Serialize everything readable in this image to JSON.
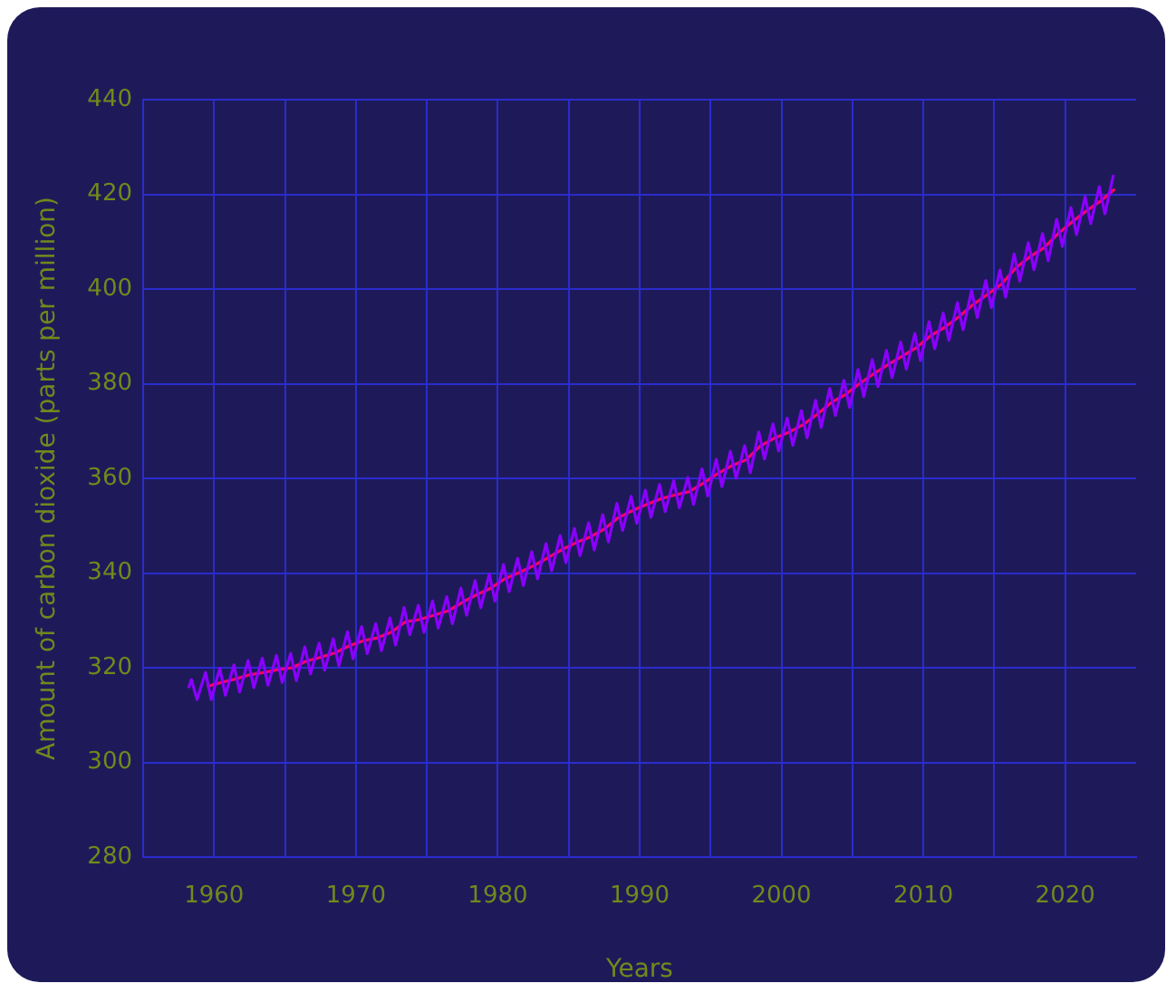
{
  "chart_data": {
    "type": "line",
    "xlabel": "Years",
    "ylabel": "Amount of carbon dioxide (parts per million)",
    "xlim": [
      1955,
      2025
    ],
    "xticks": [
      1960,
      {
        "value": 1965,
        "label": null
      },
      1970,
      {
        "value": 1975,
        "label": null
      },
      1980,
      {
        "value": 1985,
        "label": null
      },
      1990,
      {
        "value": 1995,
        "label": null
      },
      2000,
      {
        "value": 2005,
        "label": null
      },
      2010,
      {
        "value": 2015,
        "label": null
      },
      2020
    ],
    "ylim": [
      280,
      440
    ],
    "yticks": [
      280,
      300,
      320,
      340,
      360,
      380,
      400,
      420,
      440
    ],
    "grid": true,
    "legend": false,
    "marker": "none",
    "line_style": "solid",
    "series": [
      {
        "color": "#8a00ff",
        "x": [
          1958.2,
          1958.4,
          1958.8,
          1959.4,
          1959.8,
          1960.4,
          1960.8,
          1961.4,
          1961.8,
          1962.4,
          1962.8,
          1963.4,
          1963.8,
          1964.4,
          1964.8,
          1965.4,
          1965.8,
          1966.4,
          1966.8,
          1967.4,
          1967.8,
          1968.4,
          1968.8,
          1969.4,
          1969.8,
          1970.4,
          1970.8,
          1971.4,
          1971.8,
          1972.4,
          1972.8,
          1973.4,
          1973.8,
          1974.4,
          1974.8,
          1975.4,
          1975.8,
          1976.4,
          1976.8,
          1977.4,
          1977.8,
          1978.4,
          1978.8,
          1979.4,
          1979.8,
          1980.4,
          1980.8,
          1981.4,
          1981.8,
          1982.4,
          1982.8,
          1983.4,
          1983.8,
          1984.4,
          1984.8,
          1985.4,
          1985.8,
          1986.4,
          1986.8,
          1987.4,
          1987.8,
          1988.4,
          1988.8,
          1989.4,
          1989.8,
          1990.4,
          1990.8,
          1991.4,
          1991.8,
          1992.4,
          1992.8,
          1993.4,
          1993.8,
          1994.4,
          1994.8,
          1995.4,
          1995.8,
          1996.4,
          1996.8,
          1997.4,
          1997.8,
          1998.4,
          1998.8,
          1999.4,
          1999.8,
          2000.4,
          2000.8,
          2001.4,
          2001.8,
          2002.4,
          2002.8,
          2003.4,
          2003.8,
          2004.4,
          2004.8,
          2005.4,
          2005.8,
          2006.4,
          2006.8,
          2007.4,
          2007.8,
          2008.4,
          2008.8,
          2009.4,
          2009.8,
          2010.4,
          2010.8,
          2011.4,
          2011.8,
          2012.4,
          2012.8,
          2013.4,
          2013.8,
          2014.4,
          2014.8,
          2015.4,
          2015.8,
          2016.4,
          2016.8,
          2017.4,
          2017.8,
          2018.4,
          2018.8,
          2019.4,
          2019.8,
          2020.4,
          2020.8,
          2021.4,
          2021.8,
          2022.4,
          2022.8,
          2023.4
        ],
        "values": [
          315.7,
          317.5,
          313.3,
          319.0,
          313.3,
          319.9,
          314.2,
          320.6,
          314.9,
          321.5,
          315.8,
          322.0,
          316.3,
          322.6,
          316.9,
          323.0,
          317.3,
          324.4,
          318.7,
          325.2,
          319.5,
          326.1,
          320.4,
          327.6,
          321.9,
          328.7,
          323.0,
          329.3,
          323.6,
          330.5,
          324.8,
          332.7,
          327.0,
          333.2,
          327.5,
          334.1,
          328.4,
          335.0,
          329.3,
          336.8,
          331.1,
          338.4,
          332.7,
          339.8,
          334.1,
          341.8,
          336.1,
          343.1,
          337.4,
          344.5,
          338.8,
          346.2,
          340.5,
          347.9,
          342.2,
          349.4,
          343.7,
          350.6,
          344.9,
          352.3,
          346.6,
          354.7,
          349.0,
          356.2,
          350.5,
          357.5,
          351.8,
          358.7,
          353.0,
          359.5,
          353.8,
          360.2,
          354.5,
          362.0,
          356.3,
          364.0,
          358.3,
          365.7,
          360.0,
          366.9,
          361.2,
          369.8,
          364.1,
          371.5,
          365.8,
          372.7,
          367.0,
          374.3,
          368.6,
          376.5,
          370.8,
          379.0,
          373.3,
          380.7,
          375.0,
          383.0,
          377.3,
          385.1,
          379.4,
          387.0,
          381.3,
          388.8,
          383.1,
          390.6,
          384.9,
          393.1,
          387.4,
          394.9,
          389.2,
          397.1,
          391.4,
          399.7,
          394.0,
          401.8,
          396.1,
          404.0,
          398.3,
          407.4,
          401.7,
          409.8,
          404.1,
          411.7,
          406.0,
          414.7,
          409.0,
          417.2,
          411.5,
          419.5,
          413.8,
          421.6,
          415.9,
          424.1
        ]
      },
      {
        "color": "#ff0066",
        "x": [
          1959.5,
          1960.5,
          1961.5,
          1962.5,
          1963.5,
          1964.5,
          1965.5,
          1966.5,
          1967.5,
          1968.5,
          1969.5,
          1970.5,
          1971.5,
          1972.5,
          1973.5,
          1974.5,
          1975.5,
          1976.5,
          1977.5,
          1978.5,
          1979.5,
          1980.5,
          1981.5,
          1982.5,
          1983.5,
          1984.5,
          1985.5,
          1986.5,
          1987.5,
          1988.5,
          1989.5,
          1990.5,
          1991.5,
          1992.5,
          1993.5,
          1994.5,
          1995.5,
          1996.5,
          1997.5,
          1998.5,
          1999.5,
          2000.5,
          2001.5,
          2002.5,
          2003.5,
          2004.5,
          2005.5,
          2006.5,
          2007.5,
          2008.5,
          2009.5,
          2010.5,
          2011.5,
          2012.5,
          2013.5,
          2014.5,
          2015.5,
          2016.5,
          2017.5,
          2018.5,
          2019.5,
          2020.5,
          2021.5,
          2022.5,
          2023.5
        ],
        "values": [
          316.0,
          316.9,
          317.6,
          318.5,
          319.0,
          319.6,
          320.0,
          321.4,
          322.2,
          323.1,
          324.6,
          325.7,
          326.3,
          327.5,
          329.7,
          330.2,
          331.1,
          332.0,
          333.8,
          335.4,
          336.8,
          338.8,
          340.1,
          341.5,
          343.2,
          344.9,
          346.4,
          347.6,
          349.3,
          351.7,
          353.2,
          354.5,
          355.7,
          356.5,
          357.2,
          359.0,
          361.0,
          362.7,
          363.9,
          366.8,
          368.5,
          369.7,
          371.3,
          373.5,
          376.0,
          377.7,
          380.0,
          382.1,
          384.0,
          385.8,
          387.6,
          390.1,
          391.9,
          394.1,
          396.7,
          398.8,
          401.0,
          404.4,
          406.8,
          408.7,
          411.7,
          414.2,
          416.5,
          418.6,
          421.1
        ]
      }
    ]
  }
}
